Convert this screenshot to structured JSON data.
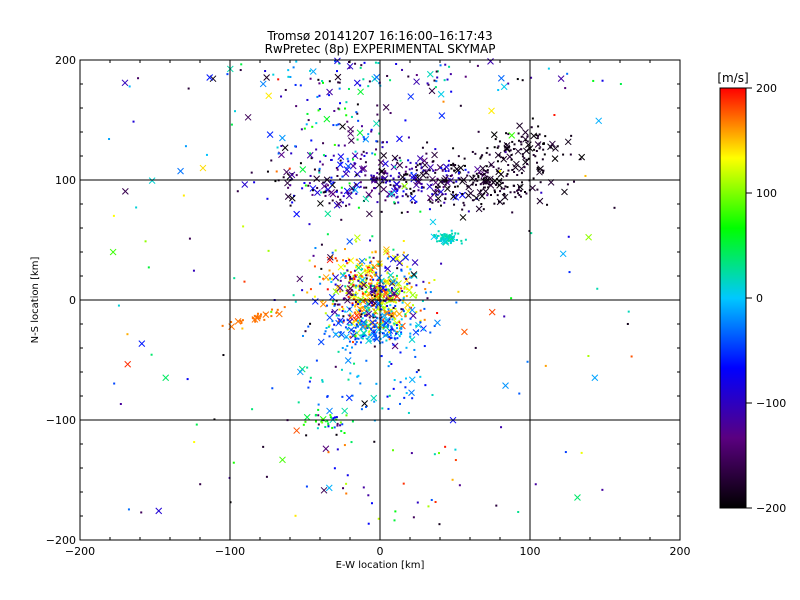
{
  "chart_data": {
    "type": "scatter",
    "title": "Tromsø 20141207 16:16:00–16:17:43",
    "subtitle": "RwPretec (8p) EXPERIMENTAL SKYMAP",
    "xlabel": "E-W location [km]",
    "ylabel": "N-S location [km]",
    "xlim": [
      -200,
      200
    ],
    "ylim": [
      -200,
      200
    ],
    "x_ticks": [
      -200,
      -100,
      0,
      100,
      200
    ],
    "y_ticks": [
      -200,
      -100,
      0,
      100,
      200
    ],
    "grid": true,
    "colorbar": {
      "label": "[m/s]",
      "range": [
        -200,
        200
      ],
      "ticks": [
        -200,
        -100,
        0,
        100,
        200
      ],
      "colormap": [
        "#000000",
        "#5a0080",
        "#0000ff",
        "#00c8ff",
        "#00ff00",
        "#ffff00",
        "#ff0000"
      ]
    },
    "clusters": [
      {
        "cx": 5,
        "cy": 100,
        "sx": 35,
        "sy": 12,
        "n": 320,
        "vmin": -200,
        "vmax": -60
      },
      {
        "cx": 70,
        "cy": 100,
        "sx": 25,
        "sy": 12,
        "n": 200,
        "vmin": -200,
        "vmax": -170
      },
      {
        "cx": 95,
        "cy": 130,
        "sx": 15,
        "sy": 10,
        "n": 80,
        "vmin": -200,
        "vmax": -170
      },
      {
        "cx": -5,
        "cy": 5,
        "sx": 15,
        "sy": 18,
        "n": 380,
        "vmin": 100,
        "vmax": 200
      },
      {
        "cx": -5,
        "cy": 5,
        "sx": 18,
        "sy": 20,
        "n": 220,
        "vmin": -200,
        "vmax": 50
      },
      {
        "cx": -5,
        "cy": -25,
        "sx": 15,
        "sy": 8,
        "n": 160,
        "vmin": -60,
        "vmax": 20
      },
      {
        "cx": 45,
        "cy": 52,
        "sx": 5,
        "sy": 3,
        "n": 60,
        "vmin": 0,
        "vmax": 30
      },
      {
        "cx": -25,
        "cy": 140,
        "sx": 25,
        "sy": 35,
        "n": 140,
        "vmin": -200,
        "vmax": 80
      },
      {
        "cx": -35,
        "cy": -100,
        "sx": 8,
        "sy": 5,
        "n": 40,
        "vmin": -200,
        "vmax": 100
      },
      {
        "cx": -10,
        "cy": -70,
        "sx": 25,
        "sy": 15,
        "n": 60,
        "vmin": -80,
        "vmax": 40
      },
      {
        "cx": 0,
        "cy": 185,
        "sx": 70,
        "sy": 10,
        "n": 90,
        "vmin": -200,
        "vmax": 50
      },
      {
        "cx": -5,
        "cy": -150,
        "sx": 30,
        "sy": 30,
        "n": 30,
        "vmin": -200,
        "vmax": 200
      }
    ],
    "arc": {
      "x_from": -105,
      "x_to": -55,
      "y_from": -22,
      "y_to": -5,
      "n": 30,
      "v": 170
    },
    "scatter_background": {
      "n": 140,
      "vmin": -200,
      "vmax": 200
    }
  }
}
